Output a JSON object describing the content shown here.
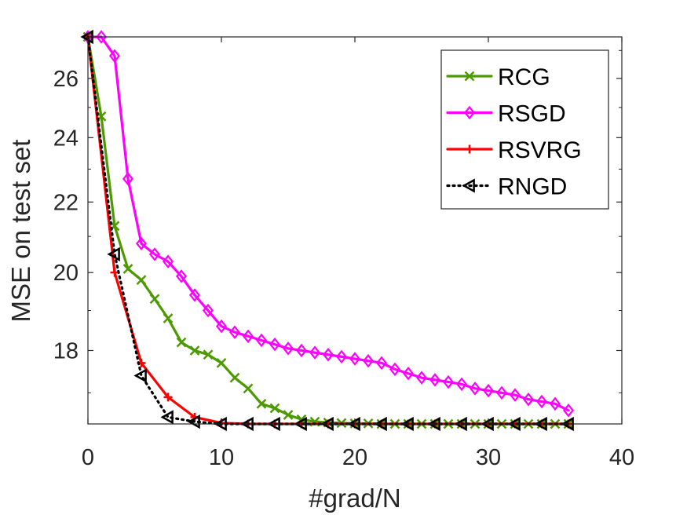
{
  "chart_data": {
    "type": "line",
    "title": "",
    "xlabel": "#grad/N",
    "ylabel": "MSE on test set",
    "xlim": [
      0,
      40
    ],
    "ylim": [
      16.3,
      27.5
    ],
    "y_scale": "log",
    "x_ticks": [
      0,
      10,
      20,
      30,
      40
    ],
    "x_tick_labels": [
      "0",
      "10",
      "20",
      "30",
      "40"
    ],
    "y_ticks": [
      18,
      20,
      22,
      24,
      26
    ],
    "y_tick_labels": [
      "18",
      "20",
      "22",
      "24",
      "26"
    ],
    "grid": false,
    "box": true,
    "legend_position": "top-right",
    "series": [
      {
        "name": "RCG",
        "color": "#4d9900",
        "line_style": "solid",
        "marker": "x",
        "x": [
          0,
          1,
          2,
          3,
          4,
          5,
          6,
          7,
          8,
          9,
          10,
          11,
          12,
          13,
          14,
          15,
          16,
          17,
          18,
          19,
          20,
          21,
          22,
          23,
          24,
          25,
          26,
          27,
          28,
          29,
          30,
          31,
          32,
          33,
          34,
          35,
          36
        ],
        "y": [
          27.5,
          24.7,
          21.3,
          20.1,
          19.8,
          19.3,
          18.8,
          18.2,
          18.0,
          17.9,
          17.7,
          17.35,
          17.1,
          16.75,
          16.65,
          16.5,
          16.4,
          16.35,
          16.33,
          16.32,
          16.31,
          16.31,
          16.3,
          16.3,
          16.3,
          16.3,
          16.3,
          16.3,
          16.3,
          16.3,
          16.3,
          16.3,
          16.3,
          16.3,
          16.3,
          16.3,
          16.3
        ]
      },
      {
        "name": "RSGD",
        "color": "#ff00ff",
        "line_style": "solid",
        "marker": "diamond",
        "x": [
          0,
          1,
          2,
          3,
          4,
          5,
          6,
          7,
          8,
          9,
          10,
          11,
          12,
          13,
          14,
          15,
          16,
          17,
          18,
          19,
          20,
          21,
          22,
          23,
          24,
          25,
          26,
          27,
          28,
          29,
          30,
          31,
          32,
          33,
          34,
          35,
          36
        ],
        "y": [
          27.5,
          27.5,
          26.8,
          22.7,
          20.8,
          20.5,
          20.3,
          19.9,
          19.4,
          19.0,
          18.6,
          18.45,
          18.35,
          18.25,
          18.15,
          18.05,
          18.0,
          17.95,
          17.9,
          17.85,
          17.8,
          17.75,
          17.7,
          17.55,
          17.45,
          17.35,
          17.3,
          17.25,
          17.2,
          17.1,
          17.05,
          17.0,
          16.95,
          16.85,
          16.8,
          16.75,
          16.6
        ]
      },
      {
        "name": "RSVRG",
        "color": "#ff0000",
        "line_style": "solid",
        "marker": "plus",
        "x": [
          0,
          2,
          4,
          6,
          8,
          10,
          12,
          14,
          16,
          18,
          20,
          22,
          24,
          26,
          28,
          30,
          32,
          34,
          36
        ],
        "y": [
          27.5,
          20.0,
          17.7,
          16.9,
          16.45,
          16.32,
          16.3,
          16.3,
          16.3,
          16.3,
          16.3,
          16.3,
          16.3,
          16.3,
          16.3,
          16.3,
          16.3,
          16.3,
          16.3
        ]
      },
      {
        "name": "RNGD",
        "color": "#000000",
        "line_style": "dotted",
        "marker": "triangle-left",
        "x": [
          0,
          2,
          4,
          6,
          8,
          10,
          12,
          14,
          16,
          18,
          20,
          22,
          24,
          26,
          28,
          30,
          32,
          34,
          36
        ],
        "y": [
          27.5,
          20.5,
          17.4,
          16.45,
          16.35,
          16.3,
          16.3,
          16.3,
          16.3,
          16.3,
          16.3,
          16.3,
          16.3,
          16.3,
          16.3,
          16.3,
          16.3,
          16.3,
          16.3
        ]
      }
    ]
  }
}
